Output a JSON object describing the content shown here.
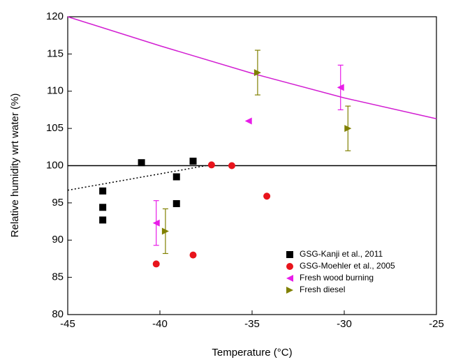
{
  "chart_data": {
    "type": "scatter",
    "xlabel": "Temperature (°C)",
    "ylabel": "Relative humidity wrt water (%)",
    "xlim": [
      -45,
      -25
    ],
    "xticks": [
      -45,
      -40,
      -35,
      -30,
      -25
    ],
    "ylim": [
      80,
      120
    ],
    "yticks": [
      80,
      85,
      90,
      95,
      100,
      105,
      110,
      115,
      120
    ],
    "legend": "lower right",
    "series": [
      {
        "name": "GSG-Kanji et al., 2011",
        "color": "#000000",
        "marker": "square",
        "x": [
          -43.1,
          -43.1,
          -43.1,
          -41.0,
          -38.2,
          -39.1,
          -39.1
        ],
        "values": [
          96.6,
          94.4,
          92.7,
          100.4,
          100.6,
          98.5,
          94.9
        ]
      },
      {
        "name": "GSG-Moehler et al., 2005",
        "color": "#e8141c",
        "marker": "circle",
        "x": [
          -37.2,
          -36.1,
          -34.2,
          -38.2,
          -40.2
        ],
        "values": [
          100.1,
          100.0,
          95.9,
          88.0,
          86.8
        ]
      },
      {
        "name": "Fresh wood burning",
        "color": "#e81ce8",
        "marker": "triangle-left",
        "x": [
          -40.2,
          -35.2,
          -30.2
        ],
        "values": [
          92.3,
          106.0,
          110.5
        ],
        "errors": [
          3,
          0,
          3
        ]
      },
      {
        "name": "Fresh diesel",
        "color": "#808000",
        "marker": "triangle-right",
        "x": [
          -39.7,
          -34.7,
          -29.8
        ],
        "values": [
          91.2,
          112.5,
          105.0
        ],
        "errors": [
          3,
          3,
          3
        ]
      }
    ],
    "lines": [
      {
        "color": "#d21ed2",
        "style": "solid",
        "x": [
          -45,
          -40,
          -35,
          -30,
          -25
        ],
        "values": [
          120,
          116.1,
          112.4,
          109.1,
          106.3
        ]
      },
      {
        "color": "#000000",
        "style": "solid",
        "x": [
          -45,
          -25
        ],
        "values": [
          100,
          100
        ]
      },
      {
        "color": "#000000",
        "style": "dotted",
        "x": [
          -45,
          -37.5
        ],
        "values": [
          96.7,
          100
        ]
      }
    ]
  }
}
